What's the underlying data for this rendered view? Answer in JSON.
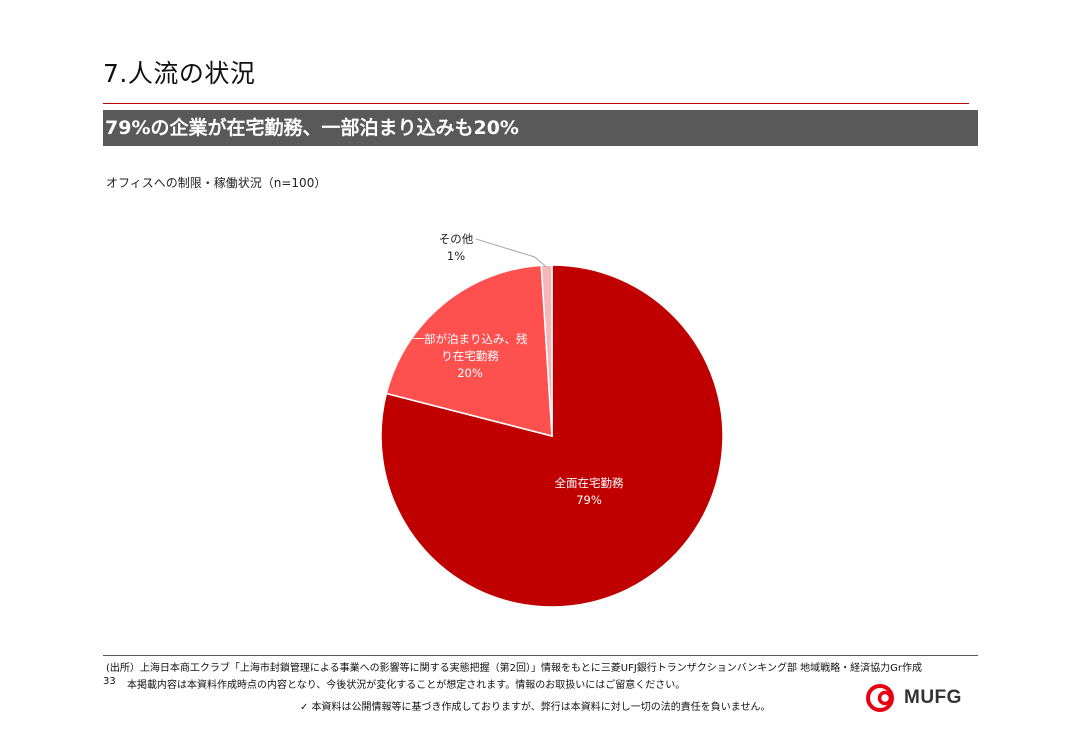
{
  "page": {
    "title": "7.人流の状況",
    "headline": "79%の企業が在宅勤務、一部泊まり込みも20%",
    "page_number": "33"
  },
  "chart_data": {
    "type": "pie",
    "subtitle": "オフィスへの制限・稼働状況（n=100）",
    "slices": [
      {
        "label": "全面在宅勤務",
        "label_lines": [
          "全面在宅勤務"
        ],
        "value": 79,
        "value_label": "79%",
        "color": "#c00000"
      },
      {
        "label": "一部が泊まり込み、残り在宅勤務",
        "label_lines": [
          "一部が泊まり込み、残",
          "り在宅勤務"
        ],
        "value": 20,
        "value_label": "20%",
        "color": "#ff5050"
      },
      {
        "label": "その他",
        "label_lines": [
          "その他"
        ],
        "value": 1,
        "value_label": "1%",
        "color": "#f4b6b6"
      }
    ]
  },
  "footer": {
    "source": "(出所）上海日本商工クラブ「上海市封鎖管理による事業への影響等に関する実態把握（第2回）」情報をもとに三菱UFJ銀行トランザクションバンキング部 地域戦略・経済協力Gr作成",
    "disclaimer": "本掲載内容は本資料作成時点の内容となり、今後状況が変化することが想定されます。情報のお取扱いにはご留意ください。",
    "legal": "✓ 本資料は公開情報等に基づき作成しておりますが、弊行は本資料に対し一切の法的責任を負いません。"
  },
  "logo": {
    "text": "MUFG",
    "icon": "mufg-logo-icon",
    "color": "#e60012"
  }
}
